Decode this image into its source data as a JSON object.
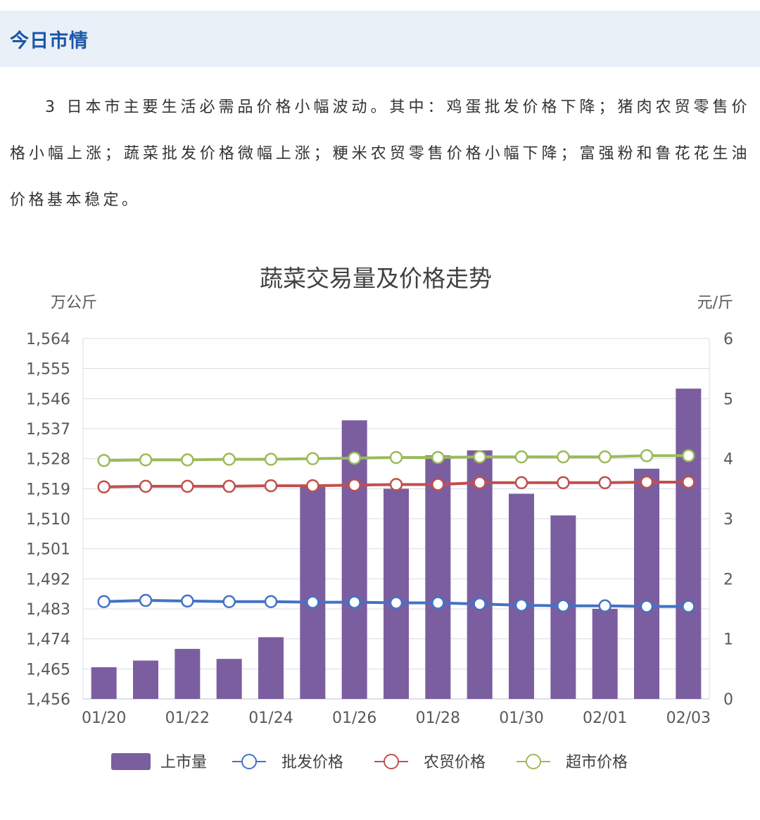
{
  "header": {
    "title": "今日市情"
  },
  "article": {
    "paragraph": "3 日本市主要生活必需品价格小幅波动。其中：鸡蛋批发价格下降；猪肉农贸零售价格小幅上涨；蔬菜批发价格微幅上涨；粳米农贸零售价格小幅下降；富强粉和鲁花花生油价格基本稳定。"
  },
  "chart_data": {
    "type": "bar",
    "title": "蔬菜交易量及价格走势",
    "ylabel_left": "万公斤",
    "ylabel_right": "元/斤",
    "categories": [
      "01/20",
      "01/21",
      "01/22",
      "01/23",
      "01/24",
      "01/25",
      "01/26",
      "01/27",
      "01/28",
      "01/29",
      "01/30",
      "01/31",
      "02/01",
      "02/02",
      "02/03"
    ],
    "x_tick_labels": [
      "01/20",
      "01/22",
      "01/24",
      "01/26",
      "01/28",
      "01/30",
      "02/01",
      "02/03"
    ],
    "y_left_ticks": [
      "1,564",
      "1,555",
      "1,546",
      "1,537",
      "1,528",
      "1,519",
      "1,510",
      "1,501",
      "1,492",
      "1,483",
      "1,474",
      "1,465",
      "1,456"
    ],
    "y_right_ticks": [
      "6",
      "5",
      "4",
      "3",
      "2",
      "1",
      "0"
    ],
    "ylim_left": [
      1456,
      1564
    ],
    "ylim_right": [
      0,
      6
    ],
    "bar_series": {
      "name": "上市量",
      "color": "#7b5ea0",
      "values": [
        1465.5,
        1467.5,
        1471,
        1468,
        1474.5,
        1519.5,
        1539.5,
        1519,
        1529,
        1530.5,
        1517.5,
        1511,
        1483,
        1525,
        1549
      ]
    },
    "line_series": [
      {
        "name": "批发价格",
        "color": "#4472c4",
        "values": [
          1.62,
          1.64,
          1.63,
          1.62,
          1.62,
          1.61,
          1.61,
          1.6,
          1.6,
          1.58,
          1.56,
          1.55,
          1.55,
          1.54,
          1.54
        ]
      },
      {
        "name": "农贸价格",
        "color": "#c0504d",
        "values": [
          3.53,
          3.54,
          3.54,
          3.54,
          3.55,
          3.55,
          3.56,
          3.57,
          3.57,
          3.6,
          3.6,
          3.6,
          3.6,
          3.61,
          3.61
        ]
      },
      {
        "name": "超市价格",
        "color": "#9bbb59",
        "values": [
          3.97,
          3.98,
          3.98,
          3.99,
          3.99,
          4.0,
          4.01,
          4.02,
          4.02,
          4.03,
          4.03,
          4.03,
          4.03,
          4.05,
          4.05
        ]
      }
    ],
    "grid": true,
    "legend_position": "bottom"
  }
}
